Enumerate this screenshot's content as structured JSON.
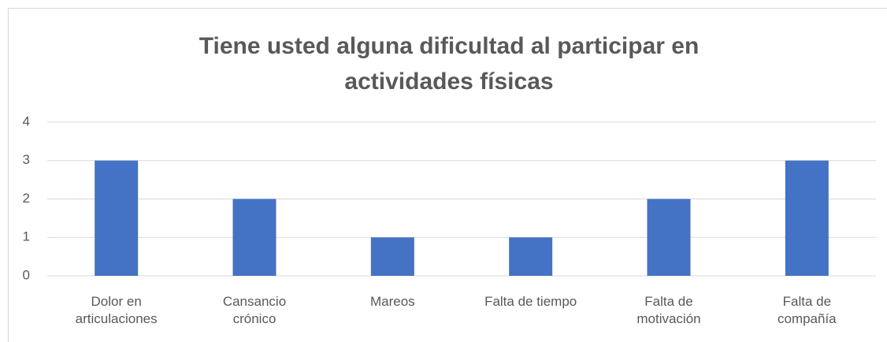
{
  "chart_data": {
    "type": "bar",
    "title": "Tiene usted alguna dificultad al participar en actividades físicas",
    "categories": [
      "Dolor en articulaciones",
      "Cansancio crónico",
      "Mareos",
      "Falta de tiempo",
      "Falta de motivación",
      "Falta de compañía"
    ],
    "values": [
      3,
      2,
      1,
      1,
      2,
      3
    ],
    "color": "#4472c4",
    "ylim": [
      0,
      4
    ],
    "yticks": [
      0,
      1,
      2,
      3,
      4
    ],
    "grid": true
  }
}
